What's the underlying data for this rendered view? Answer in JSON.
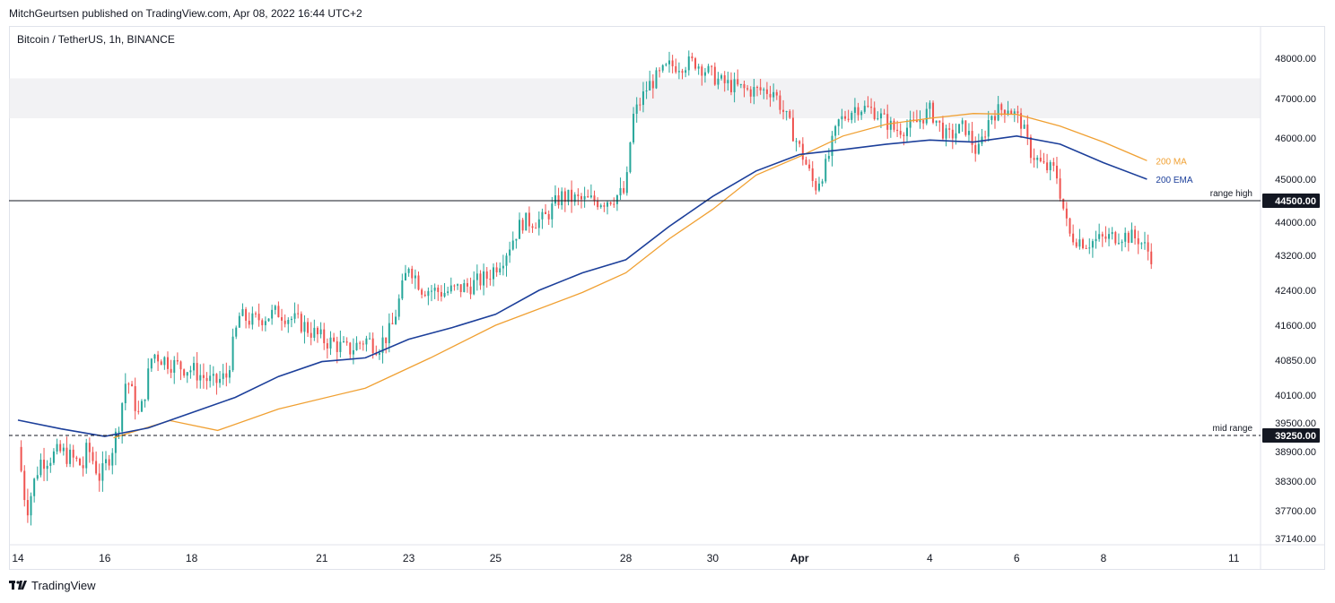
{
  "header": {
    "publisher_line": "MitchGeurtsen published on TradingView.com, Apr 08, 2022 16:44 UTC+2",
    "symbol_title": "Bitcoin / TetherUS, 1h, BINANCE"
  },
  "footer": {
    "brand": "TradingView"
  },
  "colors": {
    "up_candle": "#26a69a",
    "down_candle": "#ef5350",
    "ma_line": "#f0a032",
    "ema_line": "#1c3f9a",
    "level_line": "#131722",
    "resistance_zone": "#ececef"
  },
  "chart_data": {
    "type": "line",
    "title": "Bitcoin / TetherUS, 1h, BINANCE",
    "ylim": [
      37000,
      48500
    ],
    "y_ticks": [
      "48000.00",
      "47000.00",
      "46000.00",
      "45000.00",
      "44000.00",
      "43200.00",
      "42400.00",
      "41600.00",
      "40850.00",
      "40100.00",
      "39500.00",
      "38900.00",
      "38300.00",
      "37700.00",
      "37140.00"
    ],
    "y_tick_values": [
      48000,
      47000,
      46000,
      45000,
      44000,
      43200,
      42400,
      41600,
      40850,
      40100,
      39500,
      38900,
      38300,
      37700,
      37140
    ],
    "x_ticks": [
      {
        "label": "14",
        "day": 0
      },
      {
        "label": "16",
        "day": 2
      },
      {
        "label": "18",
        "day": 4
      },
      {
        "label": "21",
        "day": 7
      },
      {
        "label": "23",
        "day": 9
      },
      {
        "label": "25",
        "day": 11
      },
      {
        "label": "28",
        "day": 14
      },
      {
        "label": "30",
        "day": 16
      },
      {
        "label": "Apr",
        "day": 18
      },
      {
        "label": "4",
        "day": 21
      },
      {
        "label": "6",
        "day": 23
      },
      {
        "label": "8",
        "day": 25
      },
      {
        "label": "11",
        "day": 28
      }
    ],
    "x_range_days": [
      0,
      29.5
    ],
    "resistance_zone": {
      "low": 46500,
      "high": 47500
    },
    "levels": [
      {
        "name": "range high",
        "value": 44500,
        "label": "44500.00",
        "style": "solid"
      },
      {
        "name": "mid range",
        "value": 39250,
        "label": "39250.00",
        "style": "dashed"
      }
    ],
    "series": [
      {
        "name": "200 MA",
        "label": "200 MA",
        "color": "#f0a032",
        "points": [
          [
            2.2,
            39200
          ],
          [
            3.5,
            39550
          ],
          [
            4.6,
            39350
          ],
          [
            6,
            39800
          ],
          [
            8,
            40250
          ],
          [
            9.5,
            40900
          ],
          [
            11,
            41600
          ],
          [
            13,
            42350
          ],
          [
            14,
            42800
          ],
          [
            15,
            43600
          ],
          [
            16,
            44300
          ],
          [
            17,
            45100
          ],
          [
            18,
            45550
          ],
          [
            19,
            46050
          ],
          [
            20,
            46350
          ],
          [
            21,
            46500
          ],
          [
            22,
            46620
          ],
          [
            23,
            46600
          ],
          [
            24,
            46300
          ],
          [
            25,
            45900
          ],
          [
            26,
            45450
          ]
        ]
      },
      {
        "name": "200 EMA",
        "label": "200 EMA",
        "color": "#1c3f9a",
        "points": [
          [
            0,
            39560
          ],
          [
            1,
            39380
          ],
          [
            2,
            39230
          ],
          [
            3,
            39400
          ],
          [
            4,
            39720
          ],
          [
            5,
            40050
          ],
          [
            6,
            40500
          ],
          [
            7,
            40820
          ],
          [
            8,
            40900
          ],
          [
            9,
            41300
          ],
          [
            10,
            41550
          ],
          [
            11,
            41850
          ],
          [
            12,
            42400
          ],
          [
            13,
            42800
          ],
          [
            14,
            43100
          ],
          [
            15,
            43900
          ],
          [
            16,
            44600
          ],
          [
            17,
            45200
          ],
          [
            18,
            45600
          ],
          [
            19,
            45720
          ],
          [
            20,
            45850
          ],
          [
            21,
            45950
          ],
          [
            22,
            45900
          ],
          [
            23,
            46050
          ],
          [
            24,
            45850
          ],
          [
            25,
            45400
          ],
          [
            26,
            45000
          ]
        ]
      }
    ],
    "price_path": [
      [
        0,
        39000
      ],
      [
        0.2,
        37700
      ],
      [
        0.5,
        38700
      ],
      [
        1,
        38900
      ],
      [
        1.5,
        38600
      ],
      [
        1.6,
        39000
      ],
      [
        1.9,
        38350
      ],
      [
        2.2,
        39050
      ],
      [
        2.3,
        39400
      ],
      [
        2.5,
        40500
      ],
      [
        2.8,
        39600
      ],
      [
        3.1,
        41000
      ],
      [
        3.3,
        40900
      ],
      [
        3.6,
        40750
      ],
      [
        4,
        40650
      ],
      [
        4.5,
        40350
      ],
      [
        4.8,
        40500
      ],
      [
        5.1,
        41800
      ],
      [
        5.4,
        41700
      ],
      [
        6,
        41900
      ],
      [
        6.5,
        41650
      ],
      [
        7,
        41300
      ],
      [
        7.3,
        41200
      ],
      [
        7.6,
        41050
      ],
      [
        8,
        41300
      ],
      [
        8.3,
        41150
      ],
      [
        8.6,
        41500
      ],
      [
        9,
        43000
      ],
      [
        9.3,
        42450
      ],
      [
        9.8,
        42350
      ],
      [
        10.4,
        42500
      ],
      [
        10.8,
        42700
      ],
      [
        11.2,
        43200
      ],
      [
        11.6,
        44000
      ],
      [
        12.1,
        44050
      ],
      [
        12.5,
        44600
      ],
      [
        13,
        44500
      ],
      [
        13.5,
        44500
      ],
      [
        14,
        44700
      ],
      [
        14.15,
        46500
      ],
      [
        14.5,
        47300
      ],
      [
        15,
        47800
      ],
      [
        15.6,
        47900
      ],
      [
        16.2,
        47400
      ],
      [
        16.8,
        47200
      ],
      [
        17.4,
        47200
      ],
      [
        17.7,
        46500
      ],
      [
        17.9,
        46000
      ],
      [
        18.1,
        45500
      ],
      [
        18.35,
        44800
      ],
      [
        18.6,
        45300
      ],
      [
        18.9,
        46400
      ],
      [
        19.3,
        46800
      ],
      [
        19.7,
        46700
      ],
      [
        20.2,
        46200
      ],
      [
        20.6,
        46300
      ],
      [
        21,
        46700
      ],
      [
        21.4,
        46000
      ],
      [
        21.8,
        46300
      ],
      [
        22.1,
        45600
      ],
      [
        22.4,
        46600
      ],
      [
        22.8,
        46800
      ],
      [
        23.1,
        46400
      ],
      [
        23.3,
        45700
      ],
      [
        23.6,
        45300
      ],
      [
        23.9,
        45200
      ],
      [
        24.2,
        43700
      ],
      [
        24.6,
        43500
      ],
      [
        25,
        43600
      ],
      [
        25.4,
        43700
      ],
      [
        25.8,
        43600
      ],
      [
        26.1,
        43200
      ]
    ],
    "legend": "line labels at right end of series"
  }
}
